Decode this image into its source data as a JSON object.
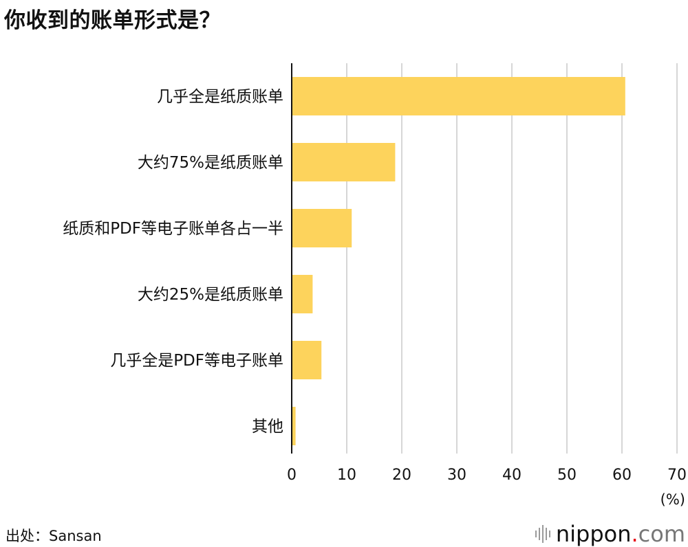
{
  "title": "你收到的账单形式是？",
  "source": "出处：Sansan",
  "brand": {
    "name": "nippon",
    "dot": ".",
    "tld": "com"
  },
  "colors": {
    "bar": "#FDD35C",
    "grid": "#d6d6d6",
    "axis": "#111111",
    "text": "#111111"
  },
  "chart_data": {
    "type": "bar",
    "orientation": "horizontal",
    "title": "你收到的账单形式是？",
    "categories": [
      "几乎全是纸质账单",
      "大约75%是纸质账单",
      "纸质和PDF等电子账单各占一半",
      "大约25%是纸质账单",
      "几乎全是PDF等电子账单",
      "其他"
    ],
    "values": [
      60.6,
      18.8,
      10.9,
      3.8,
      5.4,
      0.7
    ],
    "xlim": [
      0,
      70
    ],
    "xticks": [
      0,
      10,
      20,
      30,
      40,
      50,
      60,
      70
    ],
    "xlabel": "(%)",
    "ylabel": "",
    "grid": true,
    "legend": "none"
  }
}
